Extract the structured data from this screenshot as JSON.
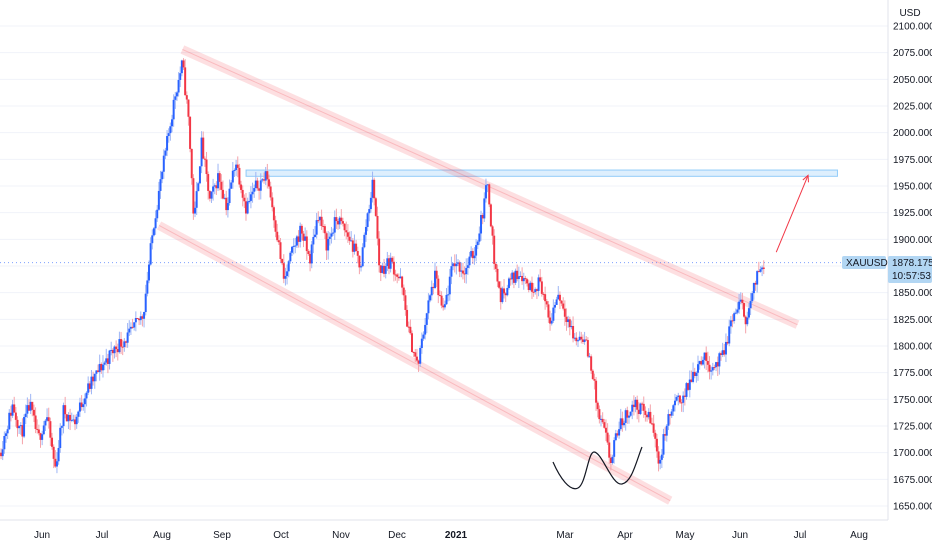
{
  "chart_data": {
    "type": "candlestick",
    "currency": "USD",
    "symbol": "XAUUSD",
    "last_price": "1878.175",
    "countdown": "10:57:53",
    "ylim": [
      1630,
      2115
    ],
    "y_ticks": [
      "2100.000",
      "2075.000",
      "2050.000",
      "2025.000",
      "2000.000",
      "1975.000",
      "1950.000",
      "1925.000",
      "1900.000",
      "1875.000",
      "1850.000",
      "1825.000",
      "1800.000",
      "1775.000",
      "1750.000",
      "1725.000",
      "1700.000",
      "1675.000",
      "1650.000"
    ],
    "x_ticks": [
      {
        "label": "Jun",
        "bold": false
      },
      {
        "label": "Jul",
        "bold": false
      },
      {
        "label": "Aug",
        "bold": false
      },
      {
        "label": "Sep",
        "bold": false
      },
      {
        "label": "Oct",
        "bold": false
      },
      {
        "label": "Nov",
        "bold": false
      },
      {
        "label": "Dec",
        "bold": false
      },
      {
        "label": "2021",
        "bold": true
      },
      {
        "label": "Mar",
        "bold": false
      },
      {
        "label": "Apr",
        "bold": false
      },
      {
        "label": "May",
        "bold": false
      },
      {
        "label": "Jun",
        "bold": false
      },
      {
        "label": "Jul",
        "bold": false
      },
      {
        "label": "Aug",
        "bold": false
      }
    ],
    "anchors": [
      {
        "d": 0,
        "v": 1700
      },
      {
        "d": 12,
        "v": 1745
      },
      {
        "d": 20,
        "v": 1718
      },
      {
        "d": 28,
        "v": 1745
      },
      {
        "d": 36,
        "v": 1712
      },
      {
        "d": 44,
        "v": 1735
      },
      {
        "d": 52,
        "v": 1685
      },
      {
        "d": 60,
        "v": 1740
      },
      {
        "d": 70,
        "v": 1728
      },
      {
        "d": 80,
        "v": 1755
      },
      {
        "d": 95,
        "v": 1780
      },
      {
        "d": 110,
        "v": 1800
      },
      {
        "d": 122,
        "v": 1810
      },
      {
        "d": 135,
        "v": 1830
      },
      {
        "d": 145,
        "v": 1915
      },
      {
        "d": 155,
        "v": 1975
      },
      {
        "d": 165,
        "v": 2035
      },
      {
        "d": 172,
        "v": 2065
      },
      {
        "d": 178,
        "v": 2010
      },
      {
        "d": 183,
        "v": 1915
      },
      {
        "d": 190,
        "v": 1990
      },
      {
        "d": 198,
        "v": 1935
      },
      {
        "d": 206,
        "v": 1960
      },
      {
        "d": 214,
        "v": 1930
      },
      {
        "d": 222,
        "v": 1975
      },
      {
        "d": 232,
        "v": 1930
      },
      {
        "d": 242,
        "v": 1950
      },
      {
        "d": 252,
        "v": 1960
      },
      {
        "d": 262,
        "v": 1900
      },
      {
        "d": 268,
        "v": 1860
      },
      {
        "d": 276,
        "v": 1890
      },
      {
        "d": 284,
        "v": 1910
      },
      {
        "d": 292,
        "v": 1880
      },
      {
        "d": 300,
        "v": 1925
      },
      {
        "d": 308,
        "v": 1895
      },
      {
        "d": 318,
        "v": 1920
      },
      {
        "d": 330,
        "v": 1900
      },
      {
        "d": 340,
        "v": 1875
      },
      {
        "d": 346,
        "v": 1920
      },
      {
        "d": 352,
        "v": 1955
      },
      {
        "d": 358,
        "v": 1870
      },
      {
        "d": 368,
        "v": 1880
      },
      {
        "d": 378,
        "v": 1860
      },
      {
        "d": 386,
        "v": 1810
      },
      {
        "d": 394,
        "v": 1780
      },
      {
        "d": 402,
        "v": 1830
      },
      {
        "d": 410,
        "v": 1865
      },
      {
        "d": 418,
        "v": 1830
      },
      {
        "d": 428,
        "v": 1880
      },
      {
        "d": 438,
        "v": 1870
      },
      {
        "d": 448,
        "v": 1890
      },
      {
        "d": 455,
        "v": 1925
      },
      {
        "d": 460,
        "v": 1955
      },
      {
        "d": 466,
        "v": 1880
      },
      {
        "d": 472,
        "v": 1845
      },
      {
        "d": 480,
        "v": 1860
      },
      {
        "d": 490,
        "v": 1870
      },
      {
        "d": 500,
        "v": 1855
      },
      {
        "d": 510,
        "v": 1860
      },
      {
        "d": 518,
        "v": 1820
      },
      {
        "d": 526,
        "v": 1850
      },
      {
        "d": 534,
        "v": 1830
      },
      {
        "d": 542,
        "v": 1805
      },
      {
        "d": 550,
        "v": 1810
      },
      {
        "d": 558,
        "v": 1780
      },
      {
        "d": 564,
        "v": 1735
      },
      {
        "d": 570,
        "v": 1720
      },
      {
        "d": 576,
        "v": 1690
      },
      {
        "d": 582,
        "v": 1720
      },
      {
        "d": 590,
        "v": 1735
      },
      {
        "d": 598,
        "v": 1745
      },
      {
        "d": 606,
        "v": 1740
      },
      {
        "d": 614,
        "v": 1730
      },
      {
        "d": 622,
        "v": 1690
      },
      {
        "d": 628,
        "v": 1725
      },
      {
        "d": 636,
        "v": 1745
      },
      {
        "d": 646,
        "v": 1755
      },
      {
        "d": 654,
        "v": 1775
      },
      {
        "d": 662,
        "v": 1790
      },
      {
        "d": 672,
        "v": 1780
      },
      {
        "d": 682,
        "v": 1790
      },
      {
        "d": 690,
        "v": 1825
      },
      {
        "d": 698,
        "v": 1840
      },
      {
        "d": 704,
        "v": 1825
      },
      {
        "d": 710,
        "v": 1850
      },
      {
        "d": 716,
        "v": 1872
      },
      {
        "d": 721,
        "v": 1880
      }
    ],
    "resistance_zone": [
      1960,
      1965
    ],
    "descending_channel": {
      "upper": [
        {
          "d": 172,
          "v": 2078
        },
        {
          "d": 752,
          "v": 1820
        }
      ],
      "lower": [
        {
          "d": 150,
          "v": 1913
        },
        {
          "d": 632,
          "v": 1655
        }
      ]
    },
    "projection_arrow": [
      {
        "d": 732,
        "v": 1888
      },
      {
        "d": 762,
        "v": 1960
      }
    ]
  }
}
